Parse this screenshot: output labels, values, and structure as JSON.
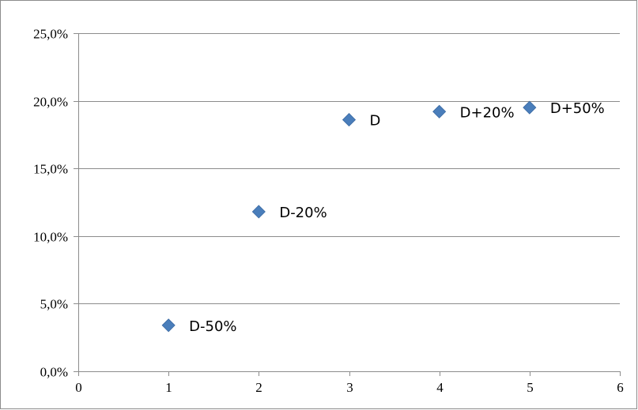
{
  "chart_data": {
    "type": "scatter",
    "title": "",
    "xlabel": "",
    "ylabel": "",
    "xlim": [
      0,
      6
    ],
    "ylim": [
      0,
      25
    ],
    "x_ticks": [
      "0",
      "1",
      "2",
      "3",
      "4",
      "5",
      "6"
    ],
    "y_ticks": [
      "0,0%",
      "5,0%",
      "10,0%",
      "15,0%",
      "20,0%",
      "25,0%"
    ],
    "grid": "horizontal",
    "legend": "none",
    "marker": "diamond",
    "marker_color": "#4A7EBB",
    "series": [
      {
        "points": [
          {
            "x": 1,
            "y": 3.4,
            "label": "D-50%"
          },
          {
            "x": 2,
            "y": 11.8,
            "label": "D-20%"
          },
          {
            "x": 3,
            "y": 18.6,
            "label": "D"
          },
          {
            "x": 4,
            "y": 19.2,
            "label": "D+20%"
          },
          {
            "x": 5,
            "y": 19.5,
            "label": "D+50%"
          }
        ]
      }
    ]
  }
}
